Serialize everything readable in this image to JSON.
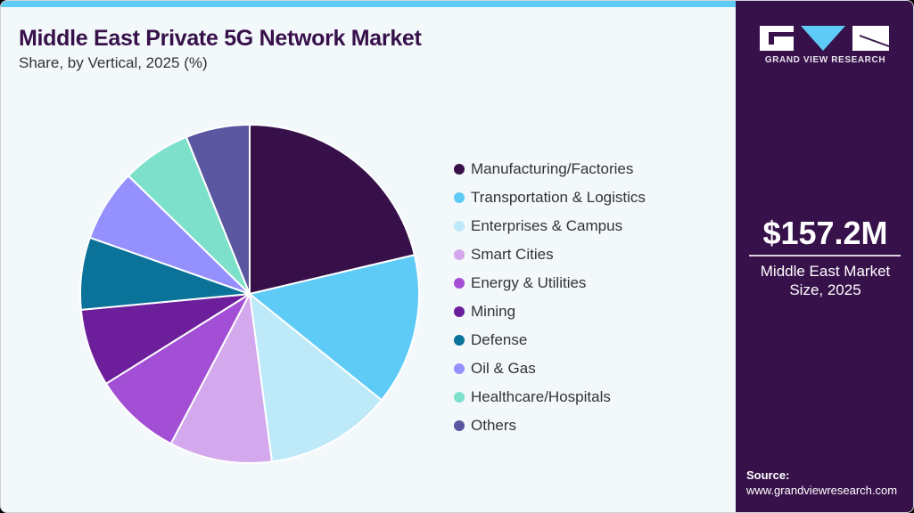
{
  "header": {
    "title": "Middle East Private 5G Network Market",
    "subtitle": "Share, by Vertical, 2025 (%)"
  },
  "sidebar": {
    "brand": "GRAND VIEW RESEARCH",
    "market_value": "$157.2M",
    "market_label_line1": "Middle East Market",
    "market_label_line2": "Size, 2025",
    "source_label": "Source:",
    "source_url": "www.grandviewresearch.com"
  },
  "colors": {
    "accent_bar": "#5ecbf6",
    "sidebar_bg": "#37124a",
    "title": "#37104a"
  },
  "legend": [
    {
      "label": "Manufacturing/Factories",
      "color": "#37104a"
    },
    {
      "label": "Transportation & Logistics",
      "color": "#5ecbf6"
    },
    {
      "label": "Enterprises & Campus",
      "color": "#bde9f9"
    },
    {
      "label": "Smart Cities",
      "color": "#d3a8ec"
    },
    {
      "label": "Energy & Utilities",
      "color": "#a34fd5"
    },
    {
      "label": "Mining",
      "color": "#6d1f9b"
    },
    {
      "label": "Defense",
      "color": "#0b7399"
    },
    {
      "label": "Oil & Gas",
      "color": "#9490fd"
    },
    {
      "label": "Healthcare/Hospitals",
      "color": "#7de0cb"
    },
    {
      "label": "Others",
      "color": "#5a56a0"
    }
  ],
  "chart_data": {
    "type": "pie",
    "title": "Middle East Private 5G Network Market",
    "subtitle": "Share, by Vertical, 2025 (%)",
    "categories": [
      "Manufacturing/Factories",
      "Transportation & Logistics",
      "Enterprises & Campus",
      "Smart Cities",
      "Energy & Utilities",
      "Mining",
      "Defense",
      "Oil & Gas",
      "Healthcare/Hospitals",
      "Others"
    ],
    "values": [
      21.3,
      14.5,
      12.1,
      9.8,
      8.4,
      7.4,
      6.9,
      6.9,
      6.6,
      6.1
    ],
    "colors": [
      "#37104a",
      "#5ecbf6",
      "#bde9f9",
      "#d3a8ec",
      "#a34fd5",
      "#6d1f9b",
      "#0b7399",
      "#9490fd",
      "#7de0cb",
      "#5a56a0"
    ],
    "start_angle_deg": 0,
    "direction": "clockwise",
    "legend_position": "right",
    "center": [
      279,
      329
    ],
    "radius": 190
  }
}
